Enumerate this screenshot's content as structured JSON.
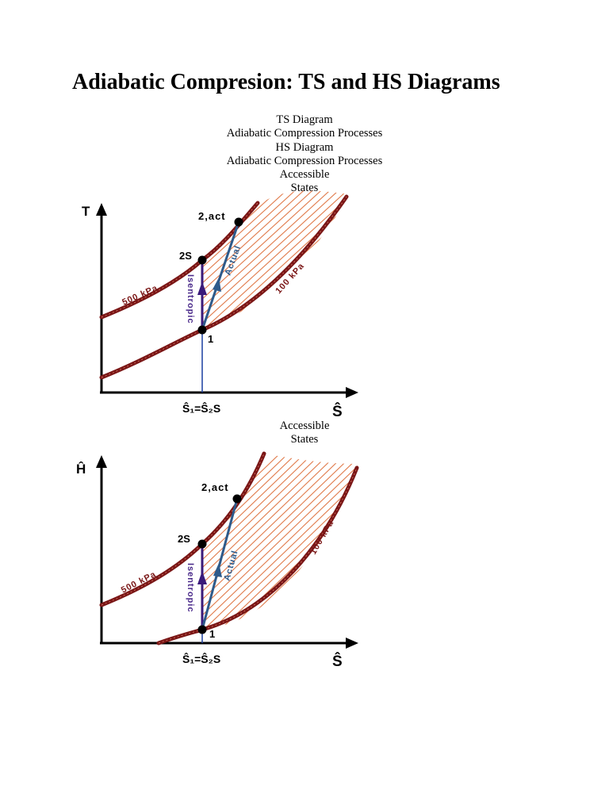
{
  "title": "Adiabatic Compresion: TS and HS Diagrams",
  "captions_top": [
    "TS Diagram",
    "Adiabatic Compression Processes",
    "HS Diagram",
    "Adiabatic Compression Processes",
    "Accessible",
    "States"
  ],
  "captions_mid": [
    "Accessible",
    "States"
  ],
  "ts_diagram": {
    "y_axis_label": "T",
    "x_axis_label": "Ŝ",
    "x_tick_label": "Ŝ₁=Ŝ₂S",
    "curve_high_label": "500 kPa",
    "curve_low_label": "100 kPa",
    "point_1": "1",
    "point_2s": "2S",
    "point_2act": "2,act",
    "isentropic_label": "Isentropic",
    "actual_label": "Actual"
  },
  "hs_diagram": {
    "y_axis_label": "Ĥ",
    "x_axis_label": "Ŝ",
    "x_tick_label": "Ŝ₁=Ŝ₂S",
    "curve_high_label": "500 kPa",
    "curve_low_label": "100 kPa",
    "point_1": "1",
    "point_2s": "2S",
    "point_2act": "2,act",
    "isentropic_label": "Isentropic",
    "actual_label": "Actual"
  },
  "colors": {
    "isobar": "#7a1616",
    "isobar_highlight": "#c96a5a",
    "hatch": "#e07a4a",
    "isentropic_line": "#3a1a7a",
    "vertical_line": "#1a3fa0",
    "actual_line": "#2e5a8a",
    "isentropic_text": "#4a2a8a",
    "axis": "#000000"
  }
}
